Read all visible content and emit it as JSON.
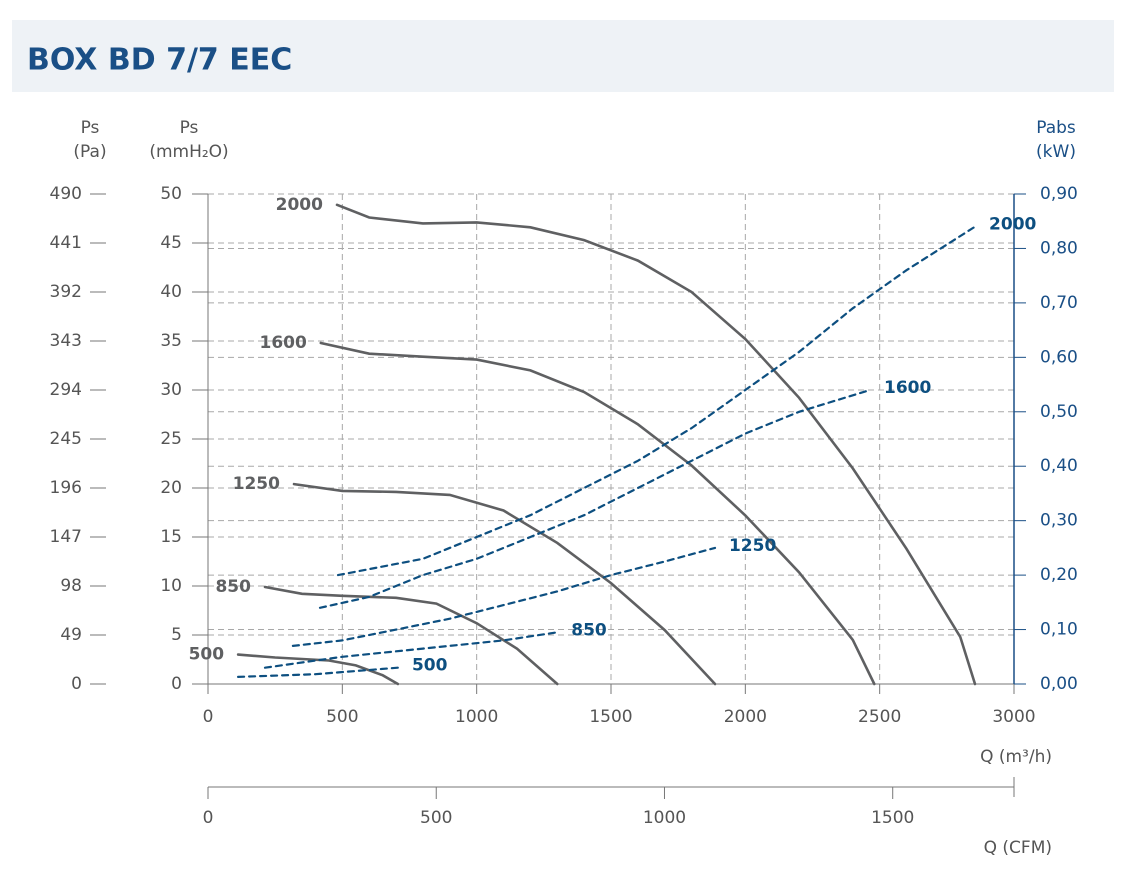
{
  "chart_data": {
    "type": "line",
    "title": "BOX BD 7/7 EEC",
    "ylabel": [
      "Ps",
      "(mmH₂O)"
    ],
    "y3label": [
      "Ps",
      "(Pa)"
    ],
    "y2label": [
      "Pabs",
      "(kW)"
    ],
    "xlabel": "Q (m³/h)",
    "x2label": "Q (CFM)",
    "xlim": [
      0,
      3000
    ],
    "xticks": [
      0,
      500,
      1000,
      1500,
      2000,
      2500,
      3000
    ],
    "x2lim": [
      0,
      1765.7
    ],
    "x2ticks": [
      0,
      500,
      1000,
      1500
    ],
    "ylim": [
      0,
      50
    ],
    "yticks": [
      0,
      5,
      10,
      15,
      20,
      25,
      30,
      35,
      40,
      45,
      50
    ],
    "y3lim": [
      0,
      490
    ],
    "y3ticks": [
      0,
      49,
      98,
      147,
      196,
      245,
      294,
      343,
      392,
      441,
      490
    ],
    "y2lim": [
      0,
      0.9
    ],
    "y2ticks": [
      {
        "value": 0,
        "label": "0,00"
      },
      {
        "value": 0.1,
        "label": "0,10"
      },
      {
        "value": 0.2,
        "label": "0,20"
      },
      {
        "value": 0.3,
        "label": "0,30"
      },
      {
        "value": 0.4,
        "label": "0,40"
      },
      {
        "value": 0.5,
        "label": "0,50"
      },
      {
        "value": 0.6,
        "label": "0,60"
      },
      {
        "value": 0.7,
        "label": "0,70"
      },
      {
        "value": 0.8,
        "label": "0,80"
      },
      {
        "value": 0.9,
        "label": "0,90"
      }
    ],
    "grid": true,
    "series": [
      {
        "name": "2000",
        "color": "#5f6062",
        "axis": "y",
        "x": [
          480,
          600,
          800,
          1000,
          1200,
          1400,
          1600,
          1800,
          2000,
          2200,
          2400,
          2600,
          2800,
          2855
        ],
        "values": [
          48.9,
          47.6,
          47.0,
          47.1,
          46.6,
          45.3,
          43.2,
          40.0,
          35.2,
          29.2,
          22.0,
          13.8,
          4.8,
          0
        ]
      },
      {
        "name": "1600",
        "color": "#5f6062",
        "axis": "y",
        "x": [
          420,
          600,
          800,
          1000,
          1200,
          1400,
          1600,
          1800,
          2000,
          2200,
          2400,
          2480
        ],
        "values": [
          34.8,
          33.7,
          33.4,
          33.1,
          32.0,
          29.8,
          26.5,
          22.3,
          17.2,
          11.4,
          4.5,
          0
        ]
      },
      {
        "name": "1250",
        "color": "#5f6062",
        "axis": "y",
        "x": [
          320,
          500,
          700,
          900,
          1100,
          1300,
          1500,
          1700,
          1887
        ],
        "values": [
          20.4,
          19.7,
          19.6,
          19.3,
          17.7,
          14.4,
          10.3,
          5.5,
          0
        ]
      },
      {
        "name": "850",
        "color": "#5f6062",
        "axis": "y",
        "x": [
          212,
          350,
          500,
          700,
          850,
          1000,
          1150,
          1300
        ],
        "values": [
          9.9,
          9.2,
          9.0,
          8.8,
          8.2,
          6.2,
          3.6,
          0
        ]
      },
      {
        "name": "500",
        "color": "#5f6062",
        "axis": "y",
        "x": [
          112,
          250,
          450,
          550,
          650,
          707
        ],
        "values": [
          3.0,
          2.7,
          2.4,
          1.9,
          0.9,
          0
        ]
      },
      {
        "name": "2000",
        "color": "#0d4f80",
        "axis": "y2",
        "dashed": true,
        "x": [
          484,
          800,
          1000,
          1200,
          1400,
          1600,
          1800,
          2000,
          2200,
          2400,
          2600,
          2855
        ],
        "values": [
          0.2,
          0.23,
          0.27,
          0.31,
          0.36,
          0.41,
          0.47,
          0.54,
          0.61,
          0.69,
          0.76,
          0.84
        ]
      },
      {
        "name": "1600",
        "color": "#0d4f80",
        "axis": "y2",
        "dashed": true,
        "x": [
          417,
          600,
          800,
          1000,
          1200,
          1400,
          1600,
          1800,
          2000,
          2200,
          2464
        ],
        "values": [
          0.14,
          0.16,
          0.2,
          0.23,
          0.27,
          0.31,
          0.36,
          0.41,
          0.46,
          0.5,
          0.54
        ]
      },
      {
        "name": "1250",
        "color": "#0d4f80",
        "axis": "y2",
        "dashed": true,
        "x": [
          316,
          500,
          700,
          900,
          1100,
          1300,
          1500,
          1700,
          1887
        ],
        "values": [
          0.07,
          0.08,
          0.1,
          0.12,
          0.145,
          0.17,
          0.2,
          0.225,
          0.25
        ]
      },
      {
        "name": "850",
        "color": "#0d4f80",
        "axis": "y2",
        "dashed": true,
        "x": [
          212,
          500,
          800,
          1100,
          1300
        ],
        "values": [
          0.03,
          0.05,
          0.065,
          0.08,
          0.095
        ]
      },
      {
        "name": "500",
        "color": "#0d4f80",
        "axis": "y2",
        "dashed": true,
        "x": [
          112,
          400,
          707
        ],
        "values": [
          0.013,
          0.018,
          0.03
        ]
      }
    ]
  }
}
